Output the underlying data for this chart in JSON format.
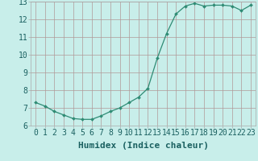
{
  "x": [
    0,
    1,
    2,
    3,
    4,
    5,
    6,
    7,
    8,
    9,
    10,
    11,
    12,
    13,
    14,
    15,
    16,
    17,
    18,
    19,
    20,
    21,
    22,
    23
  ],
  "y": [
    7.3,
    7.1,
    6.8,
    6.6,
    6.4,
    6.35,
    6.35,
    6.55,
    6.8,
    7.0,
    7.3,
    7.6,
    8.1,
    9.8,
    11.2,
    12.3,
    12.75,
    12.9,
    12.75,
    12.8,
    12.8,
    12.75,
    12.5,
    12.8
  ],
  "line_color": "#2e8b74",
  "marker_color": "#2e8b74",
  "bg_color": "#c8eeea",
  "grid_color": "#b09898",
  "xlabel": "Humidex (Indice chaleur)",
  "xlabel_fontsize": 8,
  "tick_fontsize": 7,
  "ylim": [
    6,
    13
  ],
  "xlim": [
    -0.5,
    23.5
  ],
  "yticks": [
    6,
    7,
    8,
    9,
    10,
    11,
    12,
    13
  ],
  "xticks": [
    0,
    1,
    2,
    3,
    4,
    5,
    6,
    7,
    8,
    9,
    10,
    11,
    12,
    13,
    14,
    15,
    16,
    17,
    18,
    19,
    20,
    21,
    22,
    23
  ],
  "xtick_labels": [
    "0",
    "1",
    "2",
    "3",
    "4",
    "5",
    "6",
    "7",
    "8",
    "9",
    "10",
    "11",
    "12",
    "13",
    "14",
    "15",
    "16",
    "17",
    "18",
    "19",
    "20",
    "21",
    "22",
    "23"
  ]
}
